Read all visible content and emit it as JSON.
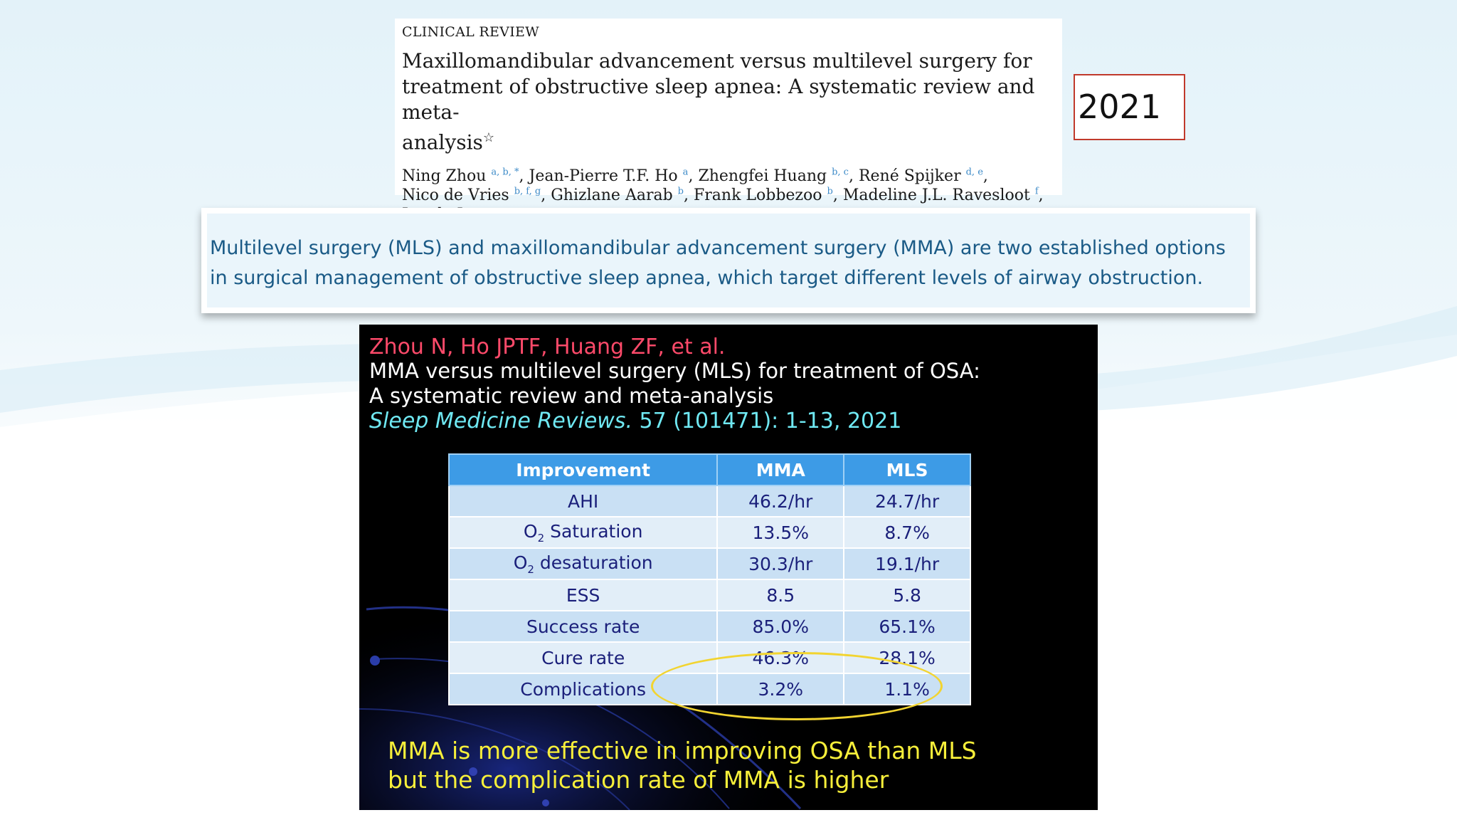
{
  "paper": {
    "section": "CLINICAL REVIEW",
    "title": "Maxillomandibular advancement versus multilevel surgery for\ntreatment of obstructive sleep apnea: A systematic review and meta-\nanalysis",
    "title_mark": "☆",
    "authors": [
      {
        "name": "Ning Zhou",
        "aff": "a, b, *",
        "sep": ", "
      },
      {
        "name": "Jean-Pierre T.F. Ho",
        "aff": "a",
        "sep": ", "
      },
      {
        "name": "Zhengfei Huang",
        "aff": "b, c",
        "sep": ", "
      },
      {
        "name": "René Spijker",
        "aff": "d, e",
        "sep": ","
      },
      {
        "name": "Nico de Vries",
        "aff": "b, f, g",
        "sep": ", "
      },
      {
        "name": "Ghizlane Aarab",
        "aff": "b",
        "sep": ", "
      },
      {
        "name": "Frank Lobbezoo",
        "aff": "b",
        "sep": ", "
      },
      {
        "name": "Madeline J.L. Ravesloot",
        "aff": "f",
        "sep": ","
      },
      {
        "name": "Jan de Lange",
        "aff": "a",
        "sep": ""
      }
    ]
  },
  "year": "2021",
  "abstract": "Multilevel surgery (MLS) and maxillomandibular advancement surgery (MMA) are two established options in surgical management of obstructive sleep apnea, which target different levels of airway obstruction.",
  "slide": {
    "authors": "Zhou N, Ho JPTF, Huang ZF, et al.",
    "title": "MMA versus multilevel surgery (MLS) for treatment of OSA:\nA systematic review and meta-analysis",
    "journal_name": "Sleep Medicine Reviews.",
    "journal_ref": " 57 (101471): 1-13, 2021",
    "table": {
      "headers": [
        "Improvement",
        "MMA",
        "MLS"
      ],
      "rows": [
        {
          "label": "AHI",
          "mma": "46.2/hr",
          "mls": "24.7/hr"
        },
        {
          "label_main": "O",
          "label_sub": "2",
          "label_rest": " Saturation",
          "mma": "13.5%",
          "mls": "8.7%"
        },
        {
          "label_main": "O",
          "label_sub": "2",
          "label_rest": " desaturation",
          "mma": "30.3/hr",
          "mls": "19.1/hr"
        },
        {
          "label": "ESS",
          "mma": "8.5",
          "mls": "5.8"
        },
        {
          "label": "Success rate",
          "mma": "85.0%",
          "mls": "65.1%"
        },
        {
          "label": "Cure rate",
          "mma": "46.3%",
          "mls": "28.1%"
        },
        {
          "label": "Complications",
          "mma": "3.2%",
          "mls": "1.1%"
        }
      ]
    },
    "conclusion": "MMA is more effective in improving OSA than MLS\nbut the complication rate of MMA is higher"
  },
  "colors": {
    "year_border": "#c0392b",
    "slide_authors": "#ff4a6a",
    "slide_journal": "#6fe8f2",
    "table_header": "#3d9be6",
    "highlight_ellipse": "#f2d430",
    "conclusion": "#f7ef3a"
  }
}
